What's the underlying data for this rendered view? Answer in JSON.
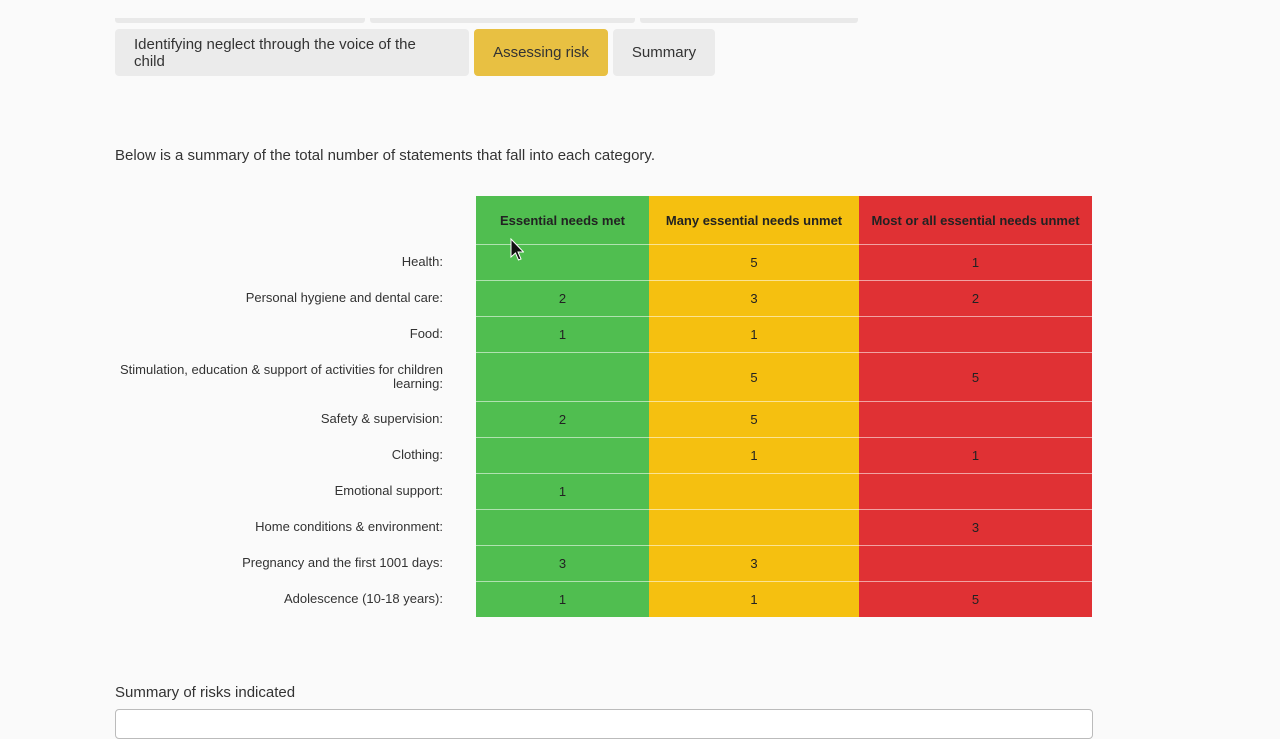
{
  "tabs": [
    {
      "label": "Identifying neglect through the voice of the child",
      "active": false
    },
    {
      "label": "Assessing risk",
      "active": true
    },
    {
      "label": "Summary",
      "active": false
    }
  ],
  "intro_text": "Below is a summary of the total number of statements that fall into each category.",
  "columns": [
    {
      "label": "Essential needs met",
      "color": "#50be50"
    },
    {
      "label": "Many essential needs unmet",
      "color": "#f5c010"
    },
    {
      "label": "Most or all essential needs unmet",
      "color": "#e03134"
    }
  ],
  "rows": [
    {
      "label": "Health:",
      "values": [
        "",
        "5",
        "1"
      ]
    },
    {
      "label": "Personal hygiene and dental care:",
      "values": [
        "2",
        "3",
        "2"
      ]
    },
    {
      "label": "Food:",
      "values": [
        "1",
        "1",
        ""
      ]
    },
    {
      "label": "Stimulation, education & support of activities for children learning:",
      "values": [
        "",
        "5",
        "5"
      ]
    },
    {
      "label": "Safety & supervision:",
      "values": [
        "2",
        "5",
        ""
      ]
    },
    {
      "label": "Clothing:",
      "values": [
        "",
        "1",
        "1"
      ]
    },
    {
      "label": "Emotional support:",
      "values": [
        "1",
        "",
        ""
      ]
    },
    {
      "label": "Home conditions & environment:",
      "values": [
        "",
        "",
        "3"
      ]
    },
    {
      "label": "Pregnancy and the first 1001 days:",
      "values": [
        "3",
        "3",
        ""
      ]
    },
    {
      "label": "Adolescence (10-18 years):",
      "values": [
        "1",
        "1",
        "5"
      ]
    }
  ],
  "summary_label": "Summary of risks indicated"
}
